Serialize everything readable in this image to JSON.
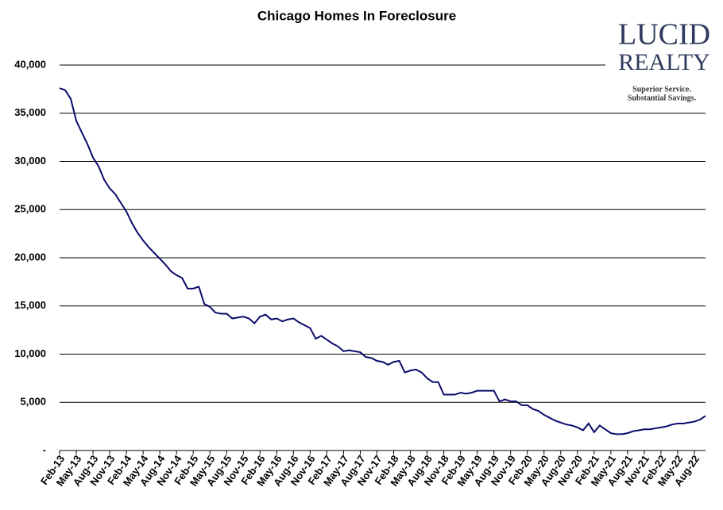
{
  "chart_data": {
    "type": "line",
    "title": "Chicago Homes In Foreclosure",
    "categories": [
      "Feb-13",
      null,
      null,
      "May-13",
      null,
      null,
      "Aug-13",
      null,
      null,
      "Nov-13",
      null,
      null,
      "Feb-14",
      null,
      null,
      "May-14",
      null,
      null,
      "Aug-14",
      null,
      null,
      "Nov-14",
      null,
      null,
      "Feb-15",
      null,
      null,
      "May-15",
      null,
      null,
      "Aug-15",
      null,
      null,
      "Nov-15",
      null,
      null,
      "Feb-16",
      null,
      null,
      "May-16",
      null,
      null,
      "Aug-16",
      null,
      null,
      "Nov-16",
      null,
      null,
      "Feb-17",
      null,
      null,
      "May-17",
      null,
      null,
      "Aug-17",
      null,
      null,
      "Nov-17",
      null,
      null,
      "Feb-18",
      null,
      null,
      "May-18",
      null,
      null,
      "Aug-18",
      null,
      null,
      "Nov-18",
      null,
      null,
      "Feb-19",
      null,
      null,
      "May-19",
      null,
      null,
      "Aug-19",
      null,
      null,
      "Nov-19",
      null,
      null,
      "Feb-20",
      null,
      null,
      "May-20",
      null,
      null,
      "Aug-20",
      null,
      null,
      "Nov-20",
      null,
      null,
      "Feb-21",
      null,
      null,
      "May-21",
      null,
      null,
      "Aug-21",
      null,
      null,
      "Nov-21",
      null,
      null,
      "Feb-22",
      null,
      null,
      "May-22",
      null,
      null,
      "Aug-22",
      null,
      null
    ],
    "series": [
      {
        "color": "#0b0b6b",
        "values": [
          37600,
          37400,
          36500,
          34200,
          33000,
          31800,
          30400,
          29500,
          28100,
          27200,
          26600,
          25700,
          24800,
          23600,
          22600,
          21800,
          21100,
          20500,
          19900,
          19300,
          18600,
          18200,
          17900,
          16800,
          16800,
          17000,
          15200,
          14900,
          14300,
          14200,
          14200,
          13700,
          13800,
          13900,
          13700,
          13200,
          13900,
          14100,
          13600,
          13700,
          13400,
          13600,
          13700,
          13300,
          13000,
          12700,
          11600,
          11900,
          11500,
          11100,
          10800,
          10300,
          10400,
          10300,
          10200,
          9700,
          9600,
          9300,
          9200,
          8900,
          9200,
          9300,
          8100,
          8300,
          8400,
          8100,
          7500,
          7100,
          7100,
          5800,
          5800,
          5800,
          6000,
          5900,
          6000,
          6200,
          6200,
          6200,
          6200,
          5100,
          5300,
          5100,
          5100,
          4700,
          4700,
          4300,
          4100,
          3700,
          3400,
          3100,
          2900,
          2700,
          2600,
          2400,
          2100,
          2800,
          1900,
          2600,
          2200,
          1800,
          1700,
          1700,
          1800,
          2000,
          2100,
          2200,
          2200,
          2300,
          2400,
          2500,
          2700,
          2800,
          2800,
          2900,
          3000,
          3200,
          3600
        ]
      }
    ],
    "ylim": [
      0,
      40000
    ],
    "yticks": [
      {
        "value": 0,
        "label": "-"
      },
      {
        "value": 5000,
        "label": "5,000"
      },
      {
        "value": 10000,
        "label": "10,000"
      },
      {
        "value": 15000,
        "label": "15,000"
      },
      {
        "value": 20000,
        "label": "20,000"
      },
      {
        "value": 25000,
        "label": "25,000"
      },
      {
        "value": 30000,
        "label": "30,000"
      },
      {
        "value": 35000,
        "label": "35,000"
      },
      {
        "value": 40000,
        "label": "40,000"
      }
    ],
    "grid": true
  },
  "logo": {
    "line1": "LUCID",
    "line2": "REALTY",
    "tagline1": "Superior Service.",
    "tagline2": "Substantial Savings."
  }
}
